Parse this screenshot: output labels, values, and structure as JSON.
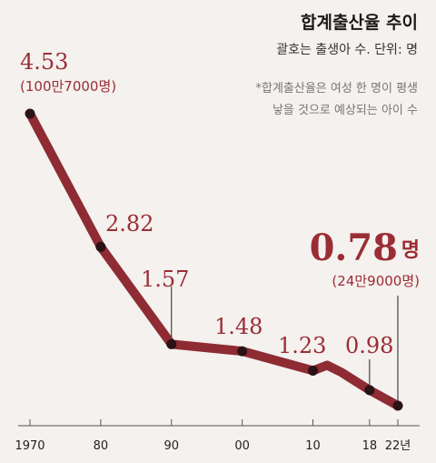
{
  "header": {
    "title": "합계출산율 추이",
    "subtitle": "괄호는 출생아 수. 단위: 명",
    "note_line1": "*합계출산율은 여성 한 명이 평생",
    "note_line2": "낳을 것으로 예상되는 아이 수"
  },
  "colors": {
    "line": "#8e2b33",
    "accent": "#9b2d35",
    "background": "#f4f1ee"
  },
  "chart_data": {
    "type": "line",
    "x": [
      1970,
      1980,
      1990,
      2000,
      2010,
      2012,
      2014,
      2018,
      2022
    ],
    "values": [
      4.53,
      2.82,
      1.57,
      1.48,
      1.23,
      1.3,
      1.21,
      0.98,
      0.78
    ],
    "xlim": [
      1970,
      2022
    ],
    "ylim": [
      0.5,
      4.6
    ],
    "x_ticks": [
      {
        "x": 1970,
        "label": "1970"
      },
      {
        "x": 1980,
        "label": "80"
      },
      {
        "x": 1990,
        "label": "90"
      },
      {
        "x": 2000,
        "label": "00"
      },
      {
        "x": 2010,
        "label": "10"
      },
      {
        "x": 2018,
        "label": "18"
      },
      {
        "x": 2022,
        "label": "22년"
      }
    ],
    "labels": [
      {
        "x": 1970,
        "text": "4.53",
        "sub": "(100만7000명)"
      },
      {
        "x": 1980,
        "text": "2.82"
      },
      {
        "x": 1990,
        "text": "1.57"
      },
      {
        "x": 2000,
        "text": "1.48"
      },
      {
        "x": 2010,
        "text": "1.23"
      },
      {
        "x": 2018,
        "text": "0.98"
      },
      {
        "x": 2022,
        "text": "0.78",
        "unit": "명",
        "sub": "(24만9000명)",
        "highlight": true
      }
    ],
    "markers": [
      1970,
      1980,
      1990,
      2000,
      2010,
      2018,
      2022
    ],
    "grid": false,
    "legend": "none"
  }
}
